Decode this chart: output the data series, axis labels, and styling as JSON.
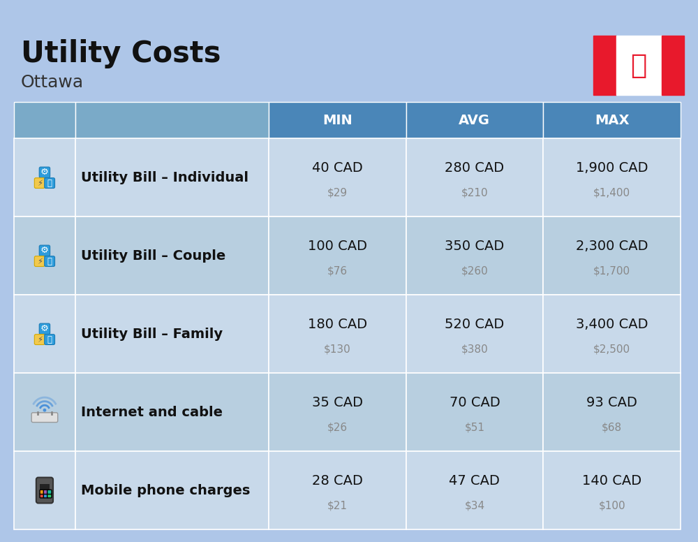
{
  "title": "Utility Costs",
  "subtitle": "Ottawa",
  "background_color": "#aec6e8",
  "header_color": "#4a86b8",
  "header_text_color": "#ffffff",
  "row_colors": [
    "#c8d9ea",
    "#b8cfe0"
  ],
  "icon_col_color": "#b8cfe0",
  "label_col_color": "#c0d2e4",
  "col_headers": [
    "MIN",
    "AVG",
    "MAX"
  ],
  "rows": [
    {
      "label": "Utility Bill – Individual",
      "min_cad": "40 CAD",
      "min_usd": "$29",
      "avg_cad": "280 CAD",
      "avg_usd": "$210",
      "max_cad": "1,900 CAD",
      "max_usd": "$1,400"
    },
    {
      "label": "Utility Bill – Couple",
      "min_cad": "100 CAD",
      "min_usd": "$76",
      "avg_cad": "350 CAD",
      "avg_usd": "$260",
      "max_cad": "2,300 CAD",
      "max_usd": "$1,700"
    },
    {
      "label": "Utility Bill – Family",
      "min_cad": "180 CAD",
      "min_usd": "$130",
      "avg_cad": "520 CAD",
      "avg_usd": "$380",
      "max_cad": "3,400 CAD",
      "max_usd": "$2,500"
    },
    {
      "label": "Internet and cable",
      "min_cad": "35 CAD",
      "min_usd": "$26",
      "avg_cad": "70 CAD",
      "avg_usd": "$51",
      "max_cad": "93 CAD",
      "max_usd": "$68"
    },
    {
      "label": "Mobile phone charges",
      "min_cad": "28 CAD",
      "min_usd": "$21",
      "avg_cad": "47 CAD",
      "avg_usd": "$34",
      "max_cad": "140 CAD",
      "max_usd": "$100"
    }
  ],
  "cell_value_fontsize": 14,
  "cell_usd_fontsize": 11,
  "label_fontsize": 14,
  "header_fontsize": 14,
  "title_fontsize": 30,
  "subtitle_fontsize": 18
}
